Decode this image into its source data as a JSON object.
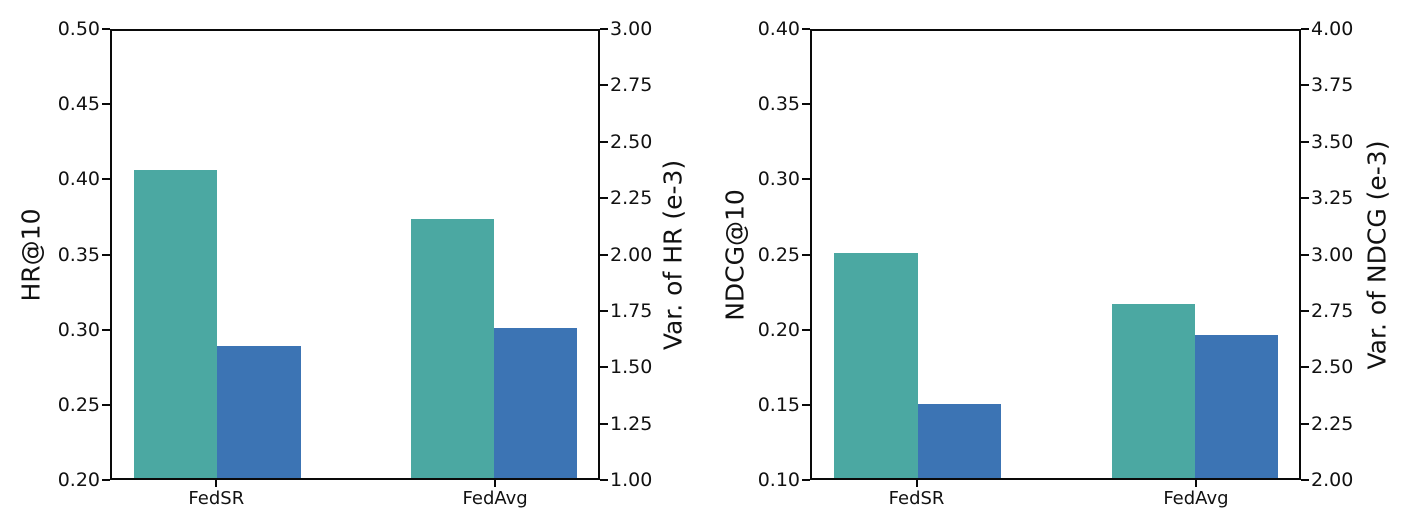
{
  "figure": {
    "background": "#ffffff",
    "text_color": "#111111"
  },
  "chart_data": [
    {
      "type": "bar",
      "title": "",
      "categories": [
        "FedSR",
        "FedAvg"
      ],
      "series": [
        {
          "name": "HR@10",
          "axis": "left",
          "color": "#4BA8A2",
          "values": [
            0.407,
            0.374
          ]
        },
        {
          "name": "Var. of HR (e-3)",
          "axis": "right",
          "color": "#3C74B4",
          "values": [
            1.59,
            1.67
          ]
        }
      ],
      "left_axis": {
        "label": "HR@10",
        "min": 0.2,
        "max": 0.5,
        "tick_labels": [
          "0.20",
          "0.25",
          "0.30",
          "0.35",
          "0.40",
          "0.45",
          "0.50"
        ]
      },
      "right_axis": {
        "label": "Var. of HR (e-3)",
        "min": 1.0,
        "max": 3.0,
        "tick_labels": [
          "1.00",
          "1.25",
          "1.50",
          "1.75",
          "2.00",
          "2.25",
          "2.50",
          "2.75",
          "3.00"
        ]
      },
      "grid": false,
      "legend": "none"
    },
    {
      "type": "bar",
      "title": "",
      "categories": [
        "FedSR",
        "FedAvg"
      ],
      "series": [
        {
          "name": "NDCG@10",
          "axis": "left",
          "color": "#4BA8A2",
          "values": [
            0.251,
            0.217
          ]
        },
        {
          "name": "Var. of NDCG (e-3)",
          "axis": "right",
          "color": "#3C74B4",
          "values": [
            2.33,
            2.64
          ]
        }
      ],
      "left_axis": {
        "label": "NDCG@10",
        "min": 0.1,
        "max": 0.4,
        "tick_labels": [
          "0.10",
          "0.15",
          "0.20",
          "0.25",
          "0.30",
          "0.35",
          "0.40"
        ]
      },
      "right_axis": {
        "label": "Var. of NDCG (e-3)",
        "min": 2.0,
        "max": 4.0,
        "tick_labels": [
          "2.00",
          "2.25",
          "2.50",
          "2.75",
          "3.00",
          "3.25",
          "3.50",
          "3.75",
          "4.00"
        ]
      },
      "grid": false,
      "legend": "none"
    }
  ]
}
